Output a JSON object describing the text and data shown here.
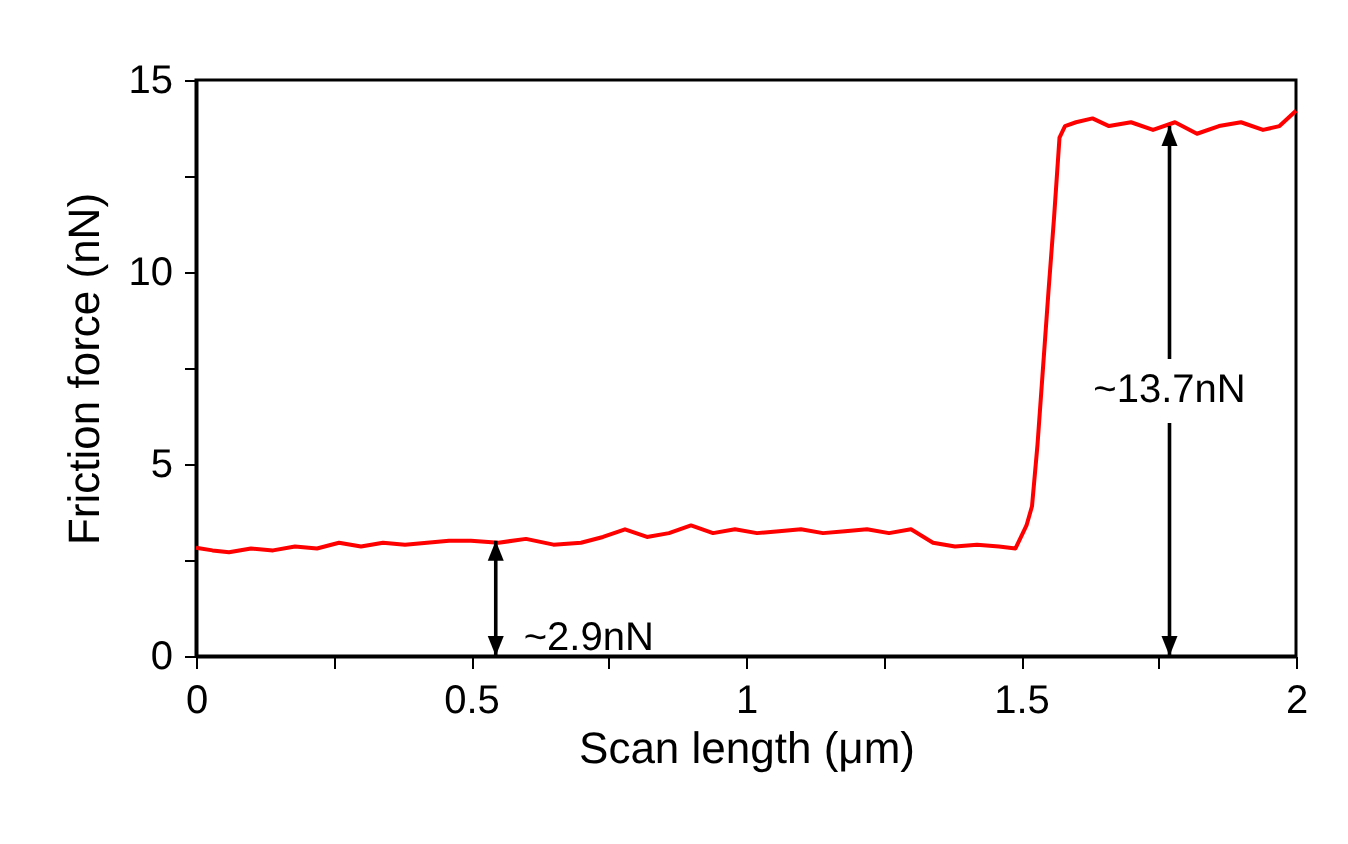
{
  "chart_data": {
    "type": "line",
    "xlabel": "Scan length (μm)",
    "ylabel": "Friction force (nN)",
    "x": [
      0,
      0.03,
      0.06,
      0.1,
      0.14,
      0.18,
      0.22,
      0.26,
      0.3,
      0.34,
      0.38,
      0.42,
      0.46,
      0.5,
      0.55,
      0.6,
      0.65,
      0.7,
      0.74,
      0.78,
      0.82,
      0.86,
      0.9,
      0.94,
      0.98,
      1.02,
      1.06,
      1.1,
      1.14,
      1.18,
      1.22,
      1.26,
      1.3,
      1.34,
      1.38,
      1.42,
      1.46,
      1.49,
      1.51,
      1.52,
      1.53,
      1.54,
      1.55,
      1.56,
      1.57,
      1.58,
      1.6,
      1.63,
      1.66,
      1.7,
      1.74,
      1.78,
      1.82,
      1.86,
      1.9,
      1.94,
      1.97,
      2.0
    ],
    "series": [
      {
        "color": "#ff0000",
        "values": [
          2.82,
          2.75,
          2.7,
          2.8,
          2.75,
          2.85,
          2.8,
          2.95,
          2.85,
          2.95,
          2.9,
          2.95,
          3.0,
          3.0,
          2.95,
          3.05,
          2.9,
          2.95,
          3.1,
          3.3,
          3.1,
          3.2,
          3.4,
          3.2,
          3.3,
          3.2,
          3.25,
          3.3,
          3.2,
          3.25,
          3.3,
          3.2,
          3.3,
          2.95,
          2.85,
          2.9,
          2.85,
          2.8,
          3.4,
          3.9,
          5.5,
          7.5,
          9.5,
          11.4,
          13.5,
          13.8,
          13.9,
          14.0,
          13.8,
          13.9,
          13.7,
          13.9,
          13.6,
          13.8,
          13.9,
          13.7,
          13.8,
          14.2
        ]
      }
    ],
    "xlim": [
      0,
      2
    ],
    "xticks": [
      0,
      {
        "value": 0.25,
        "label": null
      },
      0.5,
      {
        "value": 0.75,
        "label": null
      },
      1,
      {
        "value": 1.25,
        "label": null
      },
      1.5,
      {
        "value": 1.75,
        "label": null
      },
      2
    ],
    "ylim": [
      0,
      15
    ],
    "yticks": [
      0,
      {
        "value": 2.5,
        "label": null
      },
      5,
      {
        "value": 7.5,
        "label": null
      },
      10,
      {
        "value": 12.5,
        "label": null
      },
      15
    ],
    "grid": false,
    "marker": "none",
    "line_style": "solid",
    "annotations": [
      {
        "text": "~2.9nN",
        "x": 0.545,
        "y": 3.0
      },
      {
        "text": "~13.7nN",
        "x": 1.77,
        "y": 13.8
      }
    ]
  }
}
